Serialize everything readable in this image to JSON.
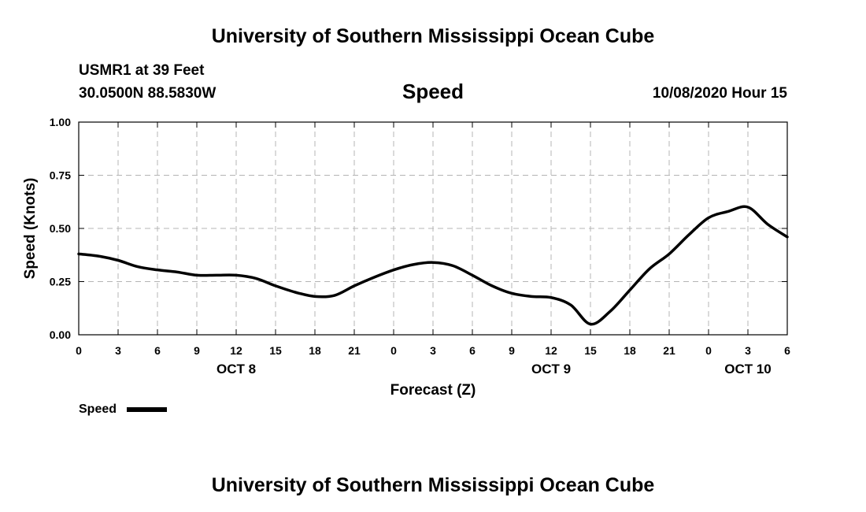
{
  "header": {
    "title": "University of Southern Mississippi Ocean Cube",
    "station": "USMR1 at 39 Feet",
    "location": "30.0500N 88.5830W",
    "variable": "Speed",
    "issued": "10/08/2020 Hour 15"
  },
  "footer": {
    "title": "University of Southern Mississippi Ocean Cube"
  },
  "legend": {
    "label": "Speed",
    "placement": "bottom-left"
  },
  "colors": {
    "line": "#000000",
    "grid": "#b4b4b4",
    "background": "#ffffff"
  },
  "chart_data": {
    "type": "line",
    "title": "Speed",
    "xlabel": "Forecast (Z)",
    "ylabel": "Speed (Knots)",
    "x_unit": "hours from 10/08/2020 00Z",
    "xlim": [
      0,
      54
    ],
    "ylim": [
      0,
      1
    ],
    "grid": true,
    "x_ticks": [
      0,
      3,
      6,
      9,
      12,
      15,
      18,
      21,
      24,
      27,
      30,
      33,
      36,
      39,
      42,
      45,
      48,
      51,
      54
    ],
    "x_tick_labels": [
      "0",
      "3",
      "6",
      "9",
      "12",
      "15",
      "18",
      "21",
      "0",
      "3",
      "6",
      "9",
      "12",
      "15",
      "18",
      "21",
      "0",
      "3",
      "6"
    ],
    "y_ticks": [
      0,
      0.25,
      0.5,
      0.75,
      1.0
    ],
    "y_tick_labels": [
      "0.00",
      "0.25",
      "0.50",
      "0.75",
      "1.00"
    ],
    "day_labels": [
      {
        "x": 12,
        "label": "OCT 8"
      },
      {
        "x": 36,
        "label": "OCT 9"
      },
      {
        "x": 51,
        "label": "OCT 10"
      }
    ],
    "series": [
      {
        "name": "Speed",
        "x": [
          0,
          1.5,
          3,
          4.5,
          6,
          7.5,
          9,
          10.5,
          12,
          13.5,
          15,
          16.5,
          18,
          19.5,
          21,
          22.5,
          24,
          25.5,
          27,
          28.5,
          30,
          31.5,
          33,
          34.5,
          36,
          37.5,
          39,
          40.5,
          42,
          43.5,
          45,
          46.5,
          48,
          49.5,
          51,
          52.5,
          54
        ],
        "y": [
          0.38,
          0.37,
          0.35,
          0.32,
          0.305,
          0.295,
          0.28,
          0.28,
          0.28,
          0.265,
          0.23,
          0.2,
          0.18,
          0.185,
          0.23,
          0.27,
          0.305,
          0.33,
          0.34,
          0.325,
          0.28,
          0.23,
          0.195,
          0.18,
          0.175,
          0.14,
          0.05,
          0.11,
          0.21,
          0.31,
          0.38,
          0.47,
          0.55,
          0.58,
          0.6,
          0.52,
          0.46
        ]
      }
    ]
  }
}
